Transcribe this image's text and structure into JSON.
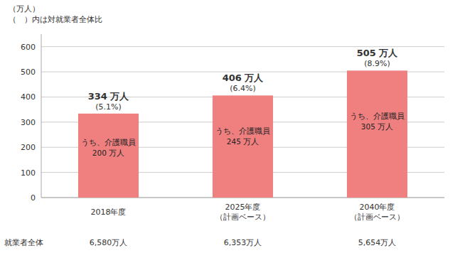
{
  "chart_data": {
    "type": "bar",
    "ylabel": "（万人）",
    "note": "（　）内は対就業者全体比",
    "categories": [
      "2018年度",
      "2025年度\n（計画ベース）",
      "2040年度\n（計画ベース）"
    ],
    "values": [
      334,
      406,
      505
    ],
    "value_labels": [
      "334 万人",
      "406 万人",
      "505 万人"
    ],
    "data_labels": true,
    "percentage_labels": [
      "(5.1%)",
      "(6.4%)",
      "(8.9%)"
    ],
    "care_worker_values": [
      200,
      245,
      305
    ],
    "care_worker_labels": [
      "うち、介護職員\n200 万人",
      "うち、介護職員\n245 万人",
      "うち、介護職員\n305 万人"
    ],
    "all_workers_label": "就業者全体",
    "all_workers_labels": [
      "6,580万人",
      "6,353万人",
      "5,654万人"
    ],
    "color": "#f08080",
    "ylim": [
      0,
      650
    ],
    "yticks": [
      0,
      100,
      200,
      300,
      400,
      500,
      600
    ],
    "grid": true
  }
}
